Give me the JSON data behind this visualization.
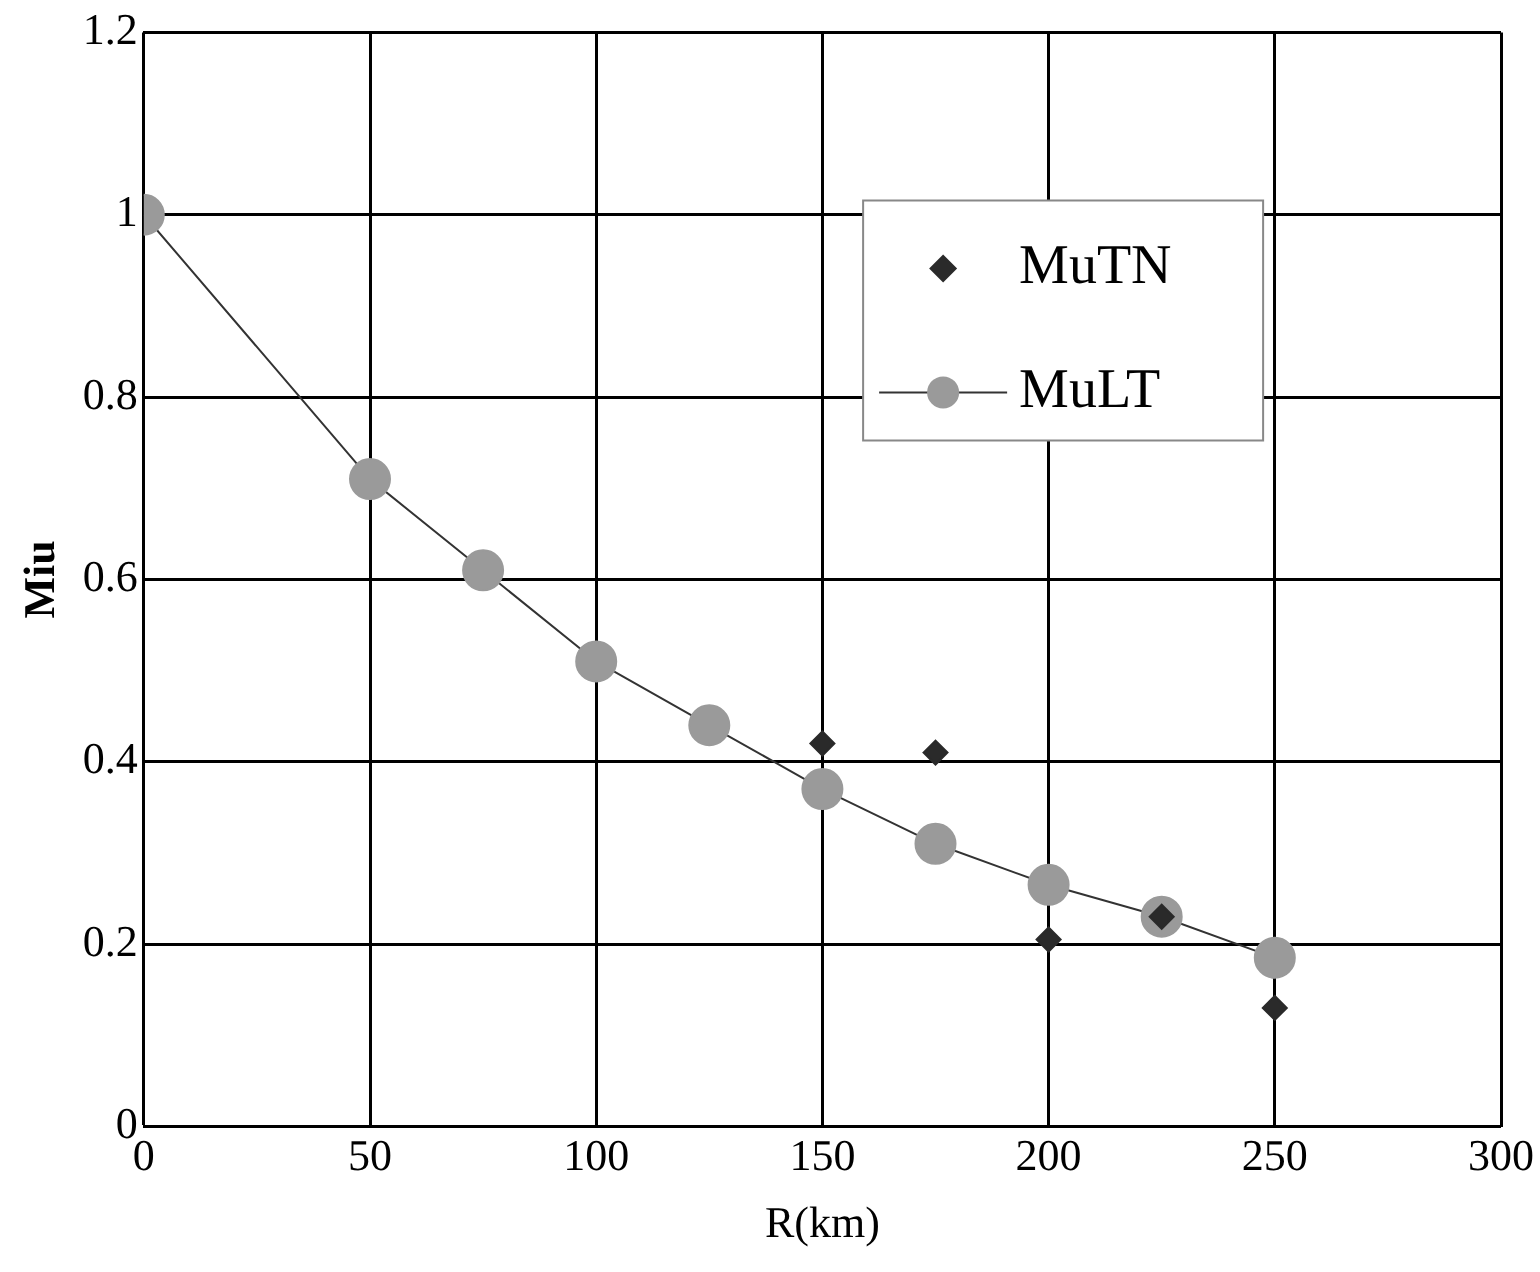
{
  "chart_data": {
    "type": "line",
    "xlabel": "R(km)",
    "ylabel": "Miu",
    "xlim": [
      0,
      300
    ],
    "xticks": [
      0,
      50,
      100,
      150,
      200,
      250,
      300
    ],
    "ylim": [
      0,
      1.2
    ],
    "yticks": [
      0,
      0.2,
      0.4,
      0.6,
      0.8,
      1,
      1.2
    ],
    "grid": true,
    "legend": "top right",
    "series": [
      {
        "name": "MuTN",
        "type": "scatter",
        "marker": "diamond",
        "color": "#2a2a2a",
        "x": [
          150,
          175,
          200,
          225,
          250
        ],
        "values": [
          0.42,
          0.41,
          0.205,
          0.23,
          0.13
        ]
      },
      {
        "name": "MuLT",
        "type": "line",
        "marker": "circle",
        "color": "#9a9a9a",
        "x": [
          0,
          50,
          75,
          100,
          125,
          150,
          175,
          200,
          225,
          250
        ],
        "values": [
          1,
          0.71,
          0.61,
          0.51,
          0.44,
          0.37,
          0.31,
          0.265,
          0.23,
          0.185
        ]
      }
    ]
  }
}
